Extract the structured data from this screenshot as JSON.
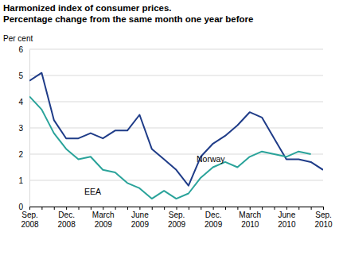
{
  "chart_data": {
    "type": "line",
    "title": "Harmonized index of consumer prices. Percentage change from the same month one year before",
    "y_label": "Per cent",
    "categories": [
      "Sep. 2008",
      null,
      null,
      "Dec. 2008",
      null,
      null,
      "March 2009",
      null,
      null,
      "June 2009",
      null,
      null,
      "Sep. 2009",
      null,
      null,
      "Dec. 2009",
      null,
      null,
      "March 2010",
      null,
      null,
      "June 2010",
      null,
      null,
      "Sep. 2010"
    ],
    "series": [
      {
        "name": "Norway",
        "color": "#1f3c88",
        "values": [
          4.8,
          5.1,
          3.3,
          2.6,
          2.6,
          2.8,
          2.6,
          2.9,
          2.9,
          3.5,
          2.2,
          1.8,
          1.4,
          0.8,
          1.9,
          2.4,
          2.7,
          3.1,
          3.6,
          3.4,
          2.6,
          1.8,
          1.8,
          1.7,
          1.4
        ]
      },
      {
        "name": "EEA",
        "color": "#2aa39a",
        "values": [
          4.2,
          3.7,
          2.8,
          2.2,
          1.8,
          1.9,
          1.4,
          1.3,
          0.9,
          0.7,
          0.3,
          0.6,
          0.3,
          0.5,
          1.1,
          1.5,
          1.7,
          1.5,
          1.9,
          2.1,
          2.0,
          1.9,
          2.1,
          2.0,
          null
        ]
      }
    ],
    "ylim": [
      0,
      6
    ],
    "yticks": [
      0,
      1,
      2,
      3,
      4,
      5,
      6
    ],
    "grid": true
  }
}
